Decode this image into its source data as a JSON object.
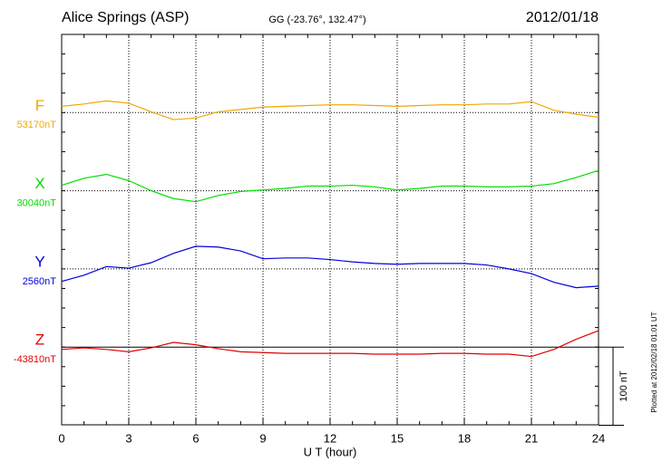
{
  "chart_data": {
    "type": "line",
    "title": "Alice Springs (ASP)",
    "subtitle": "GG (-23.76°, 132.47°)",
    "date": "2012/01/18",
    "x_label": "U T (hour)",
    "footer": "Plotted at 2012/02/18 01:01 UT",
    "xlim": [
      0,
      24
    ],
    "xticks": [
      0,
      3,
      6,
      9,
      12,
      15,
      18,
      21,
      24
    ],
    "scale_bar": {
      "value": 100,
      "label": "100 nT"
    },
    "x": [
      0,
      1,
      2,
      3,
      4,
      5,
      6,
      7,
      8,
      9,
      10,
      11,
      12,
      13,
      14,
      15,
      16,
      17,
      18,
      19,
      20,
      21,
      22,
      23,
      24
    ],
    "series": [
      {
        "name": "F",
        "color": "#f0a800",
        "baseline": {
          "value": 53170,
          "label": "53170nT"
        },
        "values": [
          8,
          11,
          15,
          12,
          1,
          -9,
          -7,
          1,
          4,
          7,
          8,
          9,
          10,
          10,
          9,
          8,
          9,
          10,
          10,
          11,
          11,
          14,
          3,
          -2,
          -6
        ]
      },
      {
        "name": "X",
        "color": "#00dd00",
        "baseline": {
          "value": 30040,
          "label": "30040nT"
        },
        "values": [
          7,
          16,
          21,
          13,
          0,
          -10,
          -14,
          -6,
          -1,
          1,
          3,
          6,
          6,
          7,
          5,
          1,
          3,
          6,
          6,
          5,
          5,
          6,
          9,
          17,
          26
        ]
      },
      {
        "name": "Y",
        "color": "#0000dd",
        "baseline": {
          "value": 2560,
          "label": "2560nT"
        },
        "values": [
          -16,
          -8,
          3,
          1,
          8,
          20,
          29,
          28,
          23,
          13,
          14,
          14,
          12,
          9,
          7,
          6,
          7,
          7,
          7,
          5,
          0,
          -6,
          -17,
          -24,
          -22
        ]
      },
      {
        "name": "Z",
        "color": "#e00000",
        "baseline": {
          "value": -43810,
          "label": "-43810nT"
        },
        "values": [
          -3,
          -1,
          -3,
          -6,
          -1,
          6,
          3,
          -2,
          -6,
          -7,
          -8,
          -8,
          -8,
          -8,
          -9,
          -9,
          -9,
          -8,
          -8,
          -9,
          -9,
          -12,
          -3,
          10,
          21
        ]
      }
    ]
  }
}
